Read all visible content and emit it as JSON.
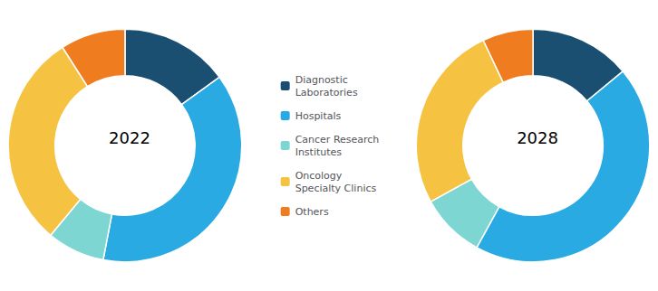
{
  "chart_data": [
    {
      "type": "pie",
      "title": "2022",
      "categories": [
        "Diagnostic\nLaboratories",
        "Hospitals",
        "Cancer Research\nInstitutes",
        "Oncology\nSpecialty Clinics",
        "Others"
      ],
      "values": [
        15,
        38,
        8,
        30,
        9
      ],
      "colors": [
        "#1b4f72",
        "#29aae2",
        "#7dd6d1",
        "#f5c242",
        "#f07c20"
      ],
      "legend": "center"
    },
    {
      "type": "pie",
      "title": "2028",
      "categories": [
        "Diagnostic\nLaboratories",
        "Hospitals",
        "Cancer Research\nInstitutes",
        "Oncology\nSpecialty Clinics",
        "Others"
      ],
      "values": [
        14,
        44,
        9,
        26,
        7
      ],
      "colors": [
        "#1b4f72",
        "#29aae2",
        "#7dd6d1",
        "#f5c242",
        "#f07c20"
      ],
      "legend": "center"
    }
  ]
}
